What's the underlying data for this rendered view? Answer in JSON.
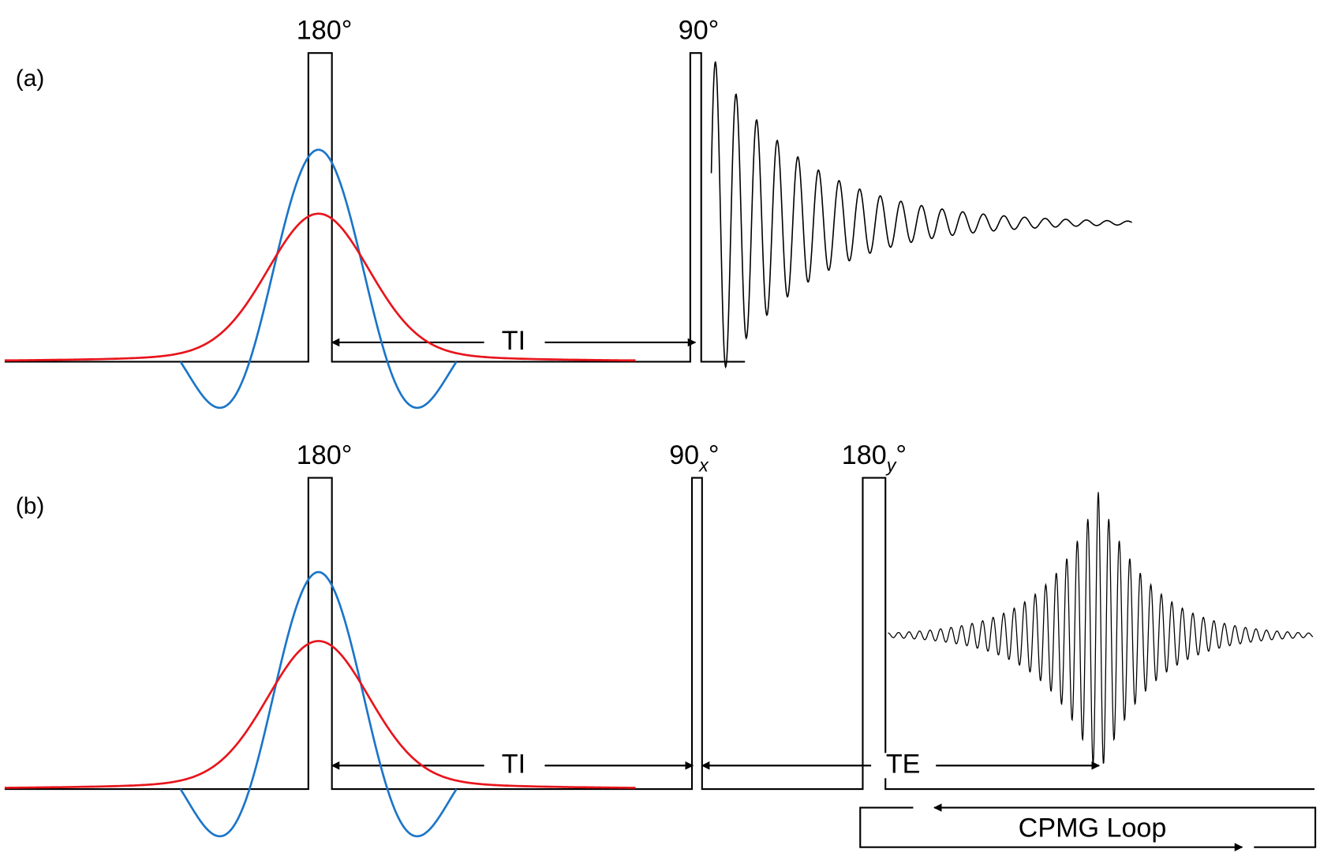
{
  "panels": [
    {
      "label": "(a)",
      "pulses": [
        "180°",
        "90°"
      ],
      "intervals": [
        "TI"
      ]
    },
    {
      "label": "(b)",
      "pulses": [
        "180°",
        {
          "number": "90",
          "subscript": "x",
          "unit": "°"
        },
        {
          "number": "180",
          "subscript": "y",
          "unit": "°"
        }
      ],
      "intervals": [
        "TI",
        "TE"
      ],
      "loop": "CPMG Loop"
    }
  ]
}
